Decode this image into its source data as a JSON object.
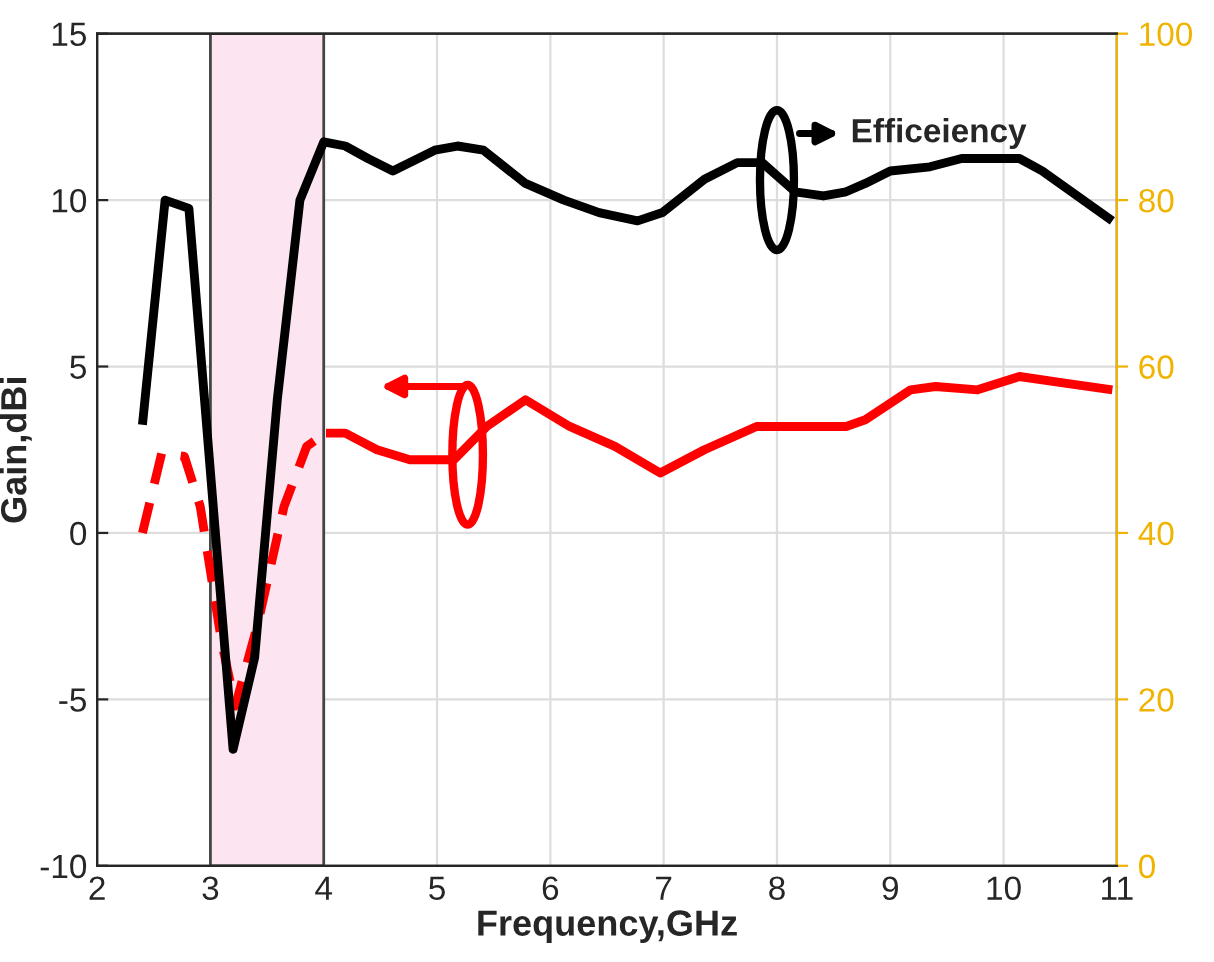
{
  "chart_data": {
    "type": "line",
    "xlabel": "Frequency,GHz",
    "ylabel": "Gain,dBi",
    "xlim": [
      2,
      11
    ],
    "xticks": [
      2,
      3,
      4,
      5,
      6,
      7,
      8,
      9,
      10,
      11
    ],
    "ylim": [
      -10,
      15
    ],
    "yticks": [
      -10,
      -5,
      0,
      5,
      10,
      15
    ],
    "y2lim": [
      0,
      100
    ],
    "y2ticks": [
      0,
      20,
      40,
      60,
      80,
      100
    ],
    "grid": true,
    "legend": false,
    "marker": "none",
    "annotations": [
      "Efficeiency"
    ],
    "bands": [
      {
        "axis": "x",
        "from": 3,
        "to": 4,
        "label": null,
        "color": "#fce4f0"
      }
    ],
    "series": [
      {
        "color": "#000000",
        "axis": "y2",
        "line_style": "solid",
        "x": [
          2.4,
          2.6,
          2.81,
          3.2,
          3.39,
          3.59,
          3.79,
          4.0,
          4.19,
          4.39,
          4.61,
          4.98,
          5.18,
          5.41,
          5.78,
          6.12,
          6.43,
          6.77,
          6.99,
          7.36,
          7.65,
          7.87,
          8.16,
          8.41,
          8.61,
          8.78,
          9.0,
          9.35,
          9.63,
          10.14,
          10.34,
          10.65,
          10.96
        ],
        "values": [
          53,
          80,
          79,
          14,
          25,
          56,
          80,
          87,
          86.5,
          85,
          83.5,
          86,
          86.5,
          86,
          82,
          80,
          78.5,
          77.5,
          78.5,
          82.5,
          84.5,
          84.5,
          81,
          80.5,
          81,
          82,
          83.5,
          84,
          85,
          85,
          83.5,
          80.5,
          77.5
        ]
      },
      {
        "color": "#ff0000",
        "line_style": "dashed",
        "x": [
          2.4,
          2.57,
          2.77,
          2.91,
          3.1,
          3.22,
          3.42,
          3.65,
          3.85,
          4.02
        ],
        "values": [
          0,
          2.4,
          2.3,
          0.8,
          -3.3,
          -5.2,
          -2.7,
          0.8,
          2.6,
          3.0
        ]
      },
      {
        "color": "#ff0000",
        "line_style": "solid",
        "x": [
          4.02,
          4.19,
          4.47,
          4.76,
          5.15,
          5.44,
          5.78,
          6.17,
          6.57,
          6.97,
          7.36,
          7.82,
          8.33,
          8.61,
          8.78,
          9.18,
          9.4,
          9.77,
          10.14,
          10.54,
          10.96
        ],
        "values": [
          3.0,
          3.0,
          2.5,
          2.2,
          2.2,
          3.2,
          4.0,
          3.2,
          2.6,
          1.8,
          2.5,
          3.2,
          3.2,
          3.2,
          3.4,
          4.3,
          4.4,
          4.3,
          4.7,
          4.5,
          4.3
        ]
      }
    ]
  }
}
